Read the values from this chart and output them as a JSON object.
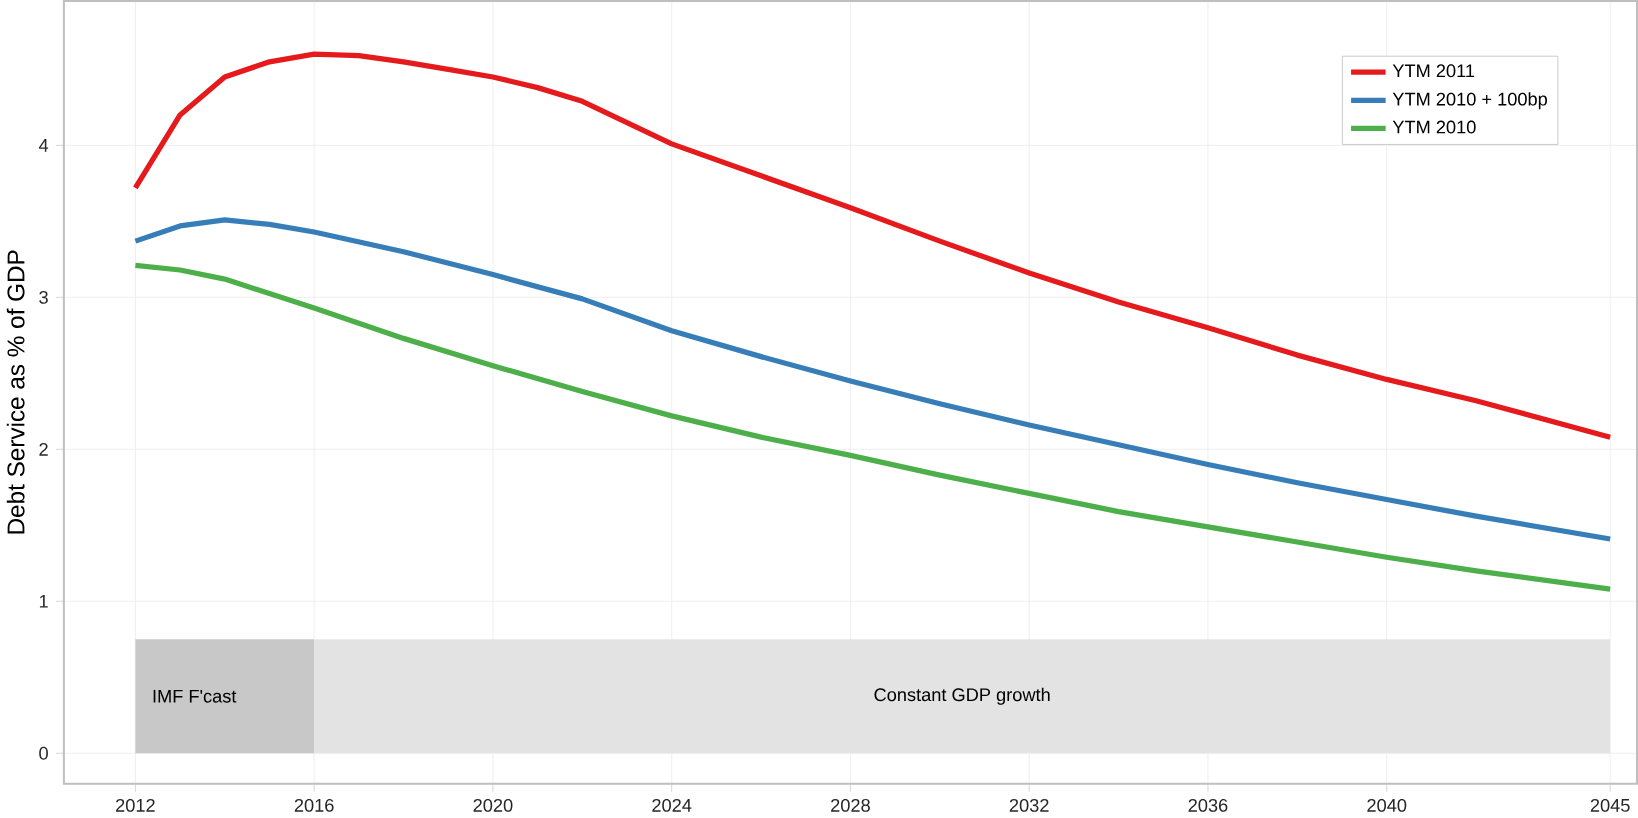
{
  "chart_data": {
    "type": "line",
    "ylabel": "Debt Service as % of GDP",
    "xlim": [
      2010.4,
      2045.6
    ],
    "ylim": [
      -0.2,
      4.95
    ],
    "xticks": [
      2012,
      2016,
      2020,
      2024,
      2028,
      2032,
      2036,
      2040,
      2045
    ],
    "yticks": [
      0,
      1,
      2,
      3,
      4
    ],
    "grid": true,
    "legend": "top right",
    "marker": "none",
    "line_style": "solid",
    "bands": [
      {
        "axis": "x",
        "from": 2012,
        "to": 2016,
        "label": "IMF F'cast",
        "color": "#c8c8c8"
      },
      {
        "axis": "x",
        "from": 2016,
        "to": 2045,
        "label": "Constant GDP growth",
        "color": "#e3e3e3"
      }
    ],
    "series": [
      {
        "name": "YTM 2011",
        "color": "#e41a1c",
        "x": [
          2012,
          2013,
          2014,
          2015,
          2016,
          2017,
          2018,
          2019,
          2020,
          2021,
          2022,
          2023,
          2024,
          2026,
          2028,
          2030,
          2032,
          2034,
          2036,
          2038,
          2040,
          2042,
          2045
        ],
        "values": [
          3.72,
          4.2,
          4.45,
          4.55,
          4.6,
          4.59,
          4.55,
          4.5,
          4.45,
          4.38,
          4.29,
          4.15,
          4.01,
          3.8,
          3.59,
          3.37,
          3.16,
          2.97,
          2.8,
          2.62,
          2.46,
          2.32,
          2.08
        ]
      },
      {
        "name": "YTM 2010 + 100bp",
        "color": "#377eb8",
        "x": [
          2012,
          2013,
          2014,
          2015,
          2016,
          2018,
          2020,
          2022,
          2024,
          2026,
          2028,
          2030,
          2032,
          2034,
          2036,
          2038,
          2040,
          2042,
          2045
        ],
        "values": [
          3.37,
          3.47,
          3.51,
          3.48,
          3.43,
          3.3,
          3.15,
          2.99,
          2.78,
          2.61,
          2.45,
          2.3,
          2.16,
          2.03,
          1.9,
          1.78,
          1.67,
          1.56,
          1.41
        ]
      },
      {
        "name": "YTM 2010",
        "color": "#4daf4a",
        "x": [
          2012,
          2013,
          2014,
          2016,
          2018,
          2020,
          2022,
          2024,
          2026,
          2028,
          2030,
          2032,
          2034,
          2036,
          2038,
          2040,
          2042,
          2045
        ],
        "values": [
          3.21,
          3.18,
          3.12,
          2.93,
          2.73,
          2.55,
          2.38,
          2.22,
          2.08,
          1.96,
          1.83,
          1.71,
          1.59,
          1.49,
          1.39,
          1.29,
          1.2,
          1.08
        ]
      }
    ]
  }
}
